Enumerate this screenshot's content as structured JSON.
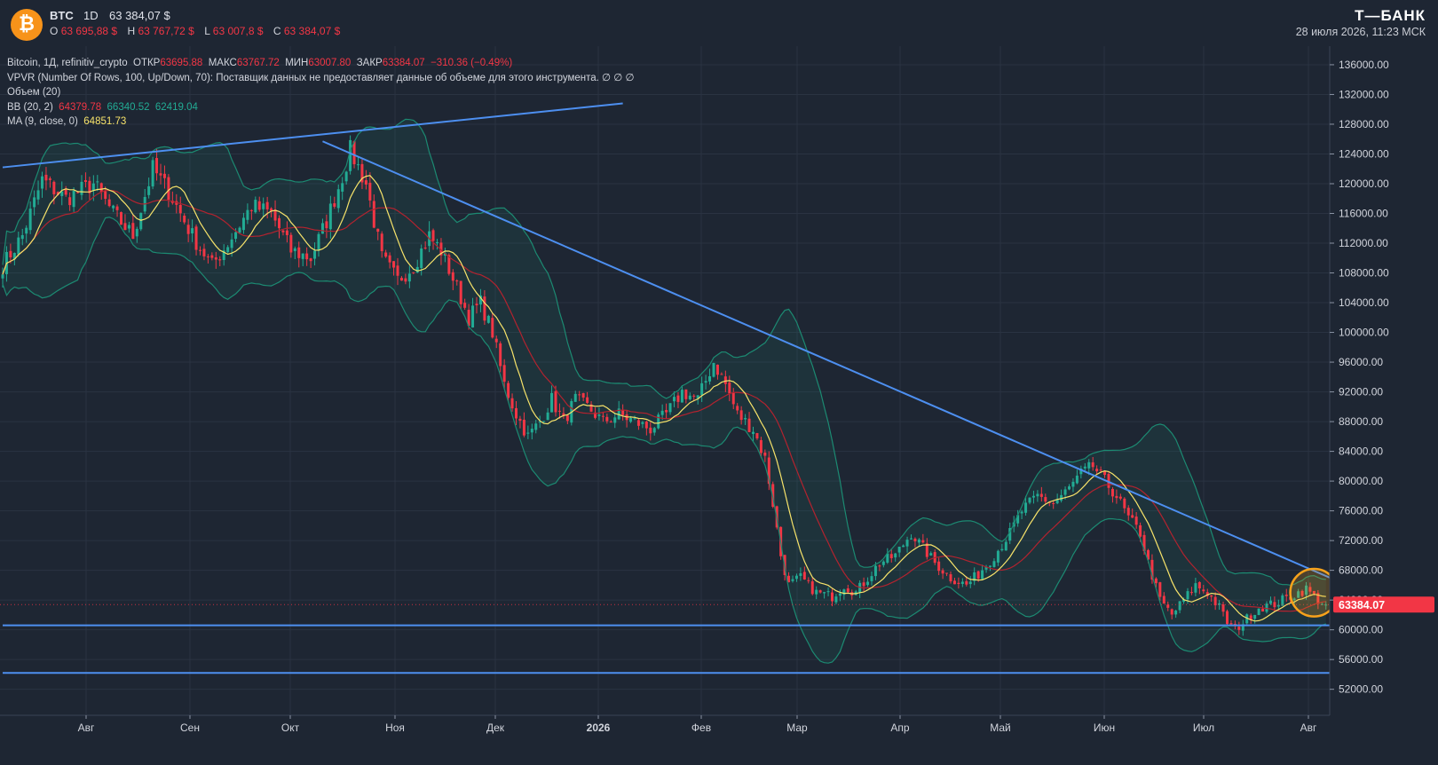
{
  "header": {
    "logo_glyph": "₿",
    "symbol": "BTC",
    "timeframe": "1D",
    "last_price": "63 384,07 $",
    "ohlc": [
      {
        "key": "O",
        "value": "63 695,88 $"
      },
      {
        "key": "H",
        "value": "63 767,72 $"
      },
      {
        "key": "L",
        "value": "63 007,8 $"
      },
      {
        "key": "C",
        "value": "63 384,07 $"
      }
    ],
    "brand": "Т—БАНК",
    "datetime": "28 июля 2026, 11:23 МСК"
  },
  "legend": {
    "line1": {
      "label": "Bitcoin, 1Д, refinitiv_crypto",
      "o_key": "ОТКР",
      "o_val": "63695.88",
      "h_key": "МАКС",
      "h_val": "63767.72",
      "l_key": "МИН",
      "l_val": "63007.80",
      "c_key": "ЗАКР",
      "c_val": "63384.07",
      "change": "−310.36 (−0.49%)"
    },
    "vpvr": "VPVR (Number Of Rows, 100, Up/Down, 70): Поставщик данных не предоставляет данные об объеме для этого инструмента.  ∅  ∅  ∅",
    "volume": "Объем (20)",
    "bb_label": "BB (20, 2)",
    "bb_values": [
      "64379.78",
      "66340.52",
      "62419.04"
    ],
    "ma_label": "MA (9, close, 0)",
    "ma_value": "64851.73"
  },
  "colors": {
    "background": "#1e2633",
    "up": "#22ab94",
    "down": "#f23645",
    "trendline": "#4d8ff0",
    "ma": "#f7e36a",
    "bb_basis": "#b2232f",
    "bb_band": "#1c8a72",
    "highlight_circle": "#f7a21b",
    "price_label": "#f23645"
  },
  "chart_data": {
    "type": "candlestick",
    "symbol": "BTC",
    "timeframe": "1D",
    "ylim": [
      48500,
      138500
    ],
    "y_ticks": [
      "136000.00",
      "132000.00",
      "128000.00",
      "124000.00",
      "120000.00",
      "116000.00",
      "112000.00",
      "108000.00",
      "104000.00",
      "100000.00",
      "96000.00",
      "92000.00",
      "88000.00",
      "84000.00",
      "80000.00",
      "76000.00",
      "72000.00",
      "68000.00",
      "64000.00",
      "60000.00",
      "56000.00",
      "52000.00"
    ],
    "x_labels": [
      "Авг",
      "Сен",
      "Окт",
      "Ноя",
      "Дек",
      "2026",
      "Фев",
      "Мар",
      "Апр",
      "Май",
      "Июн",
      "Июл",
      "Авг"
    ],
    "current_price_label": "63384.07",
    "anchors": [
      [
        0,
        109000
      ],
      [
        5,
        113000
      ],
      [
        10,
        120500
      ],
      [
        16,
        118000
      ],
      [
        23,
        120000
      ],
      [
        28,
        116000
      ],
      [
        33,
        113000
      ],
      [
        38,
        122000
      ],
      [
        42,
        119000
      ],
      [
        48,
        113000
      ],
      [
        53,
        109000
      ],
      [
        57,
        112000
      ],
      [
        63,
        117000
      ],
      [
        68,
        116000
      ],
      [
        73,
        111000
      ],
      [
        78,
        110000
      ],
      [
        82,
        115000
      ],
      [
        86,
        121000
      ],
      [
        88,
        124500
      ],
      [
        92,
        120000
      ],
      [
        96,
        110000
      ],
      [
        100,
        107000
      ],
      [
        104,
        109000
      ],
      [
        108,
        113000
      ],
      [
        111,
        111000
      ],
      [
        115,
        106000
      ],
      [
        118,
        102000
      ],
      [
        121,
        104000
      ],
      [
        124,
        100000
      ],
      [
        127,
        93000
      ],
      [
        130,
        89000
      ],
      [
        133,
        86000
      ],
      [
        136,
        88000
      ],
      [
        139,
        91000
      ],
      [
        142,
        88000
      ],
      [
        145,
        91000
      ],
      [
        148,
        90000
      ],
      [
        152,
        88000
      ],
      [
        156,
        89000
      ],
      [
        160,
        88000
      ],
      [
        164,
        87000
      ],
      [
        168,
        89000
      ],
      [
        172,
        92000
      ],
      [
        176,
        91000
      ],
      [
        180,
        96000
      ],
      [
        183,
        93000
      ],
      [
        186,
        89000
      ],
      [
        190,
        87000
      ],
      [
        193,
        83000
      ],
      [
        195,
        77000
      ],
      [
        197,
        70000
      ],
      [
        199,
        66000
      ],
      [
        202,
        67000
      ],
      [
        206,
        65000
      ],
      [
        210,
        64500
      ],
      [
        213,
        66000
      ],
      [
        216,
        65000
      ],
      [
        219,
        67000
      ],
      [
        222,
        69000
      ],
      [
        226,
        70000
      ],
      [
        230,
        73000
      ],
      [
        233,
        71000
      ],
      [
        236,
        69000
      ],
      [
        240,
        67000
      ],
      [
        244,
        66000
      ],
      [
        247,
        67500
      ],
      [
        251,
        70000
      ],
      [
        255,
        73000
      ],
      [
        258,
        76000
      ],
      [
        262,
        78000
      ],
      [
        266,
        77000
      ],
      [
        270,
        79000
      ],
      [
        273,
        81000
      ],
      [
        276,
        82000
      ],
      [
        279,
        80000
      ],
      [
        282,
        78000
      ],
      [
        285,
        75000
      ],
      [
        288,
        73000
      ],
      [
        290,
        69000
      ],
      [
        293,
        64000
      ],
      [
        296,
        62000
      ],
      [
        299,
        64000
      ],
      [
        302,
        66000
      ],
      [
        305,
        65000
      ],
      [
        308,
        63000
      ],
      [
        310,
        61000
      ],
      [
        312,
        60000
      ],
      [
        315,
        61500
      ],
      [
        318,
        63000
      ],
      [
        322,
        63500
      ],
      [
        326,
        64500
      ],
      [
        330,
        65500
      ],
      [
        333,
        64000
      ],
      [
        335,
        63384
      ]
    ],
    "overlays": {
      "bollinger_bands": {
        "period": 20,
        "stddev": 2,
        "last": {
          "basis": 64379.78,
          "upper": 66340.52,
          "lower": 62419.04
        }
      },
      "moving_average": {
        "period": 9,
        "source": "close",
        "last": 64851.73
      },
      "trendlines": [
        {
          "from": [
            0,
            122200
          ],
          "to": [
            157,
            130800
          ]
        },
        {
          "from": [
            81,
            125700
          ],
          "to": [
            356,
            62400
          ]
        },
        {
          "from": [
            0,
            60600
          ],
          "to": [
            352,
            60600
          ]
        },
        {
          "from": [
            0,
            54200
          ],
          "to": [
            356,
            54200
          ]
        }
      ],
      "highlight_circle": {
        "center": [
          332,
          65000
        ],
        "radius_value": 3200
      }
    }
  }
}
